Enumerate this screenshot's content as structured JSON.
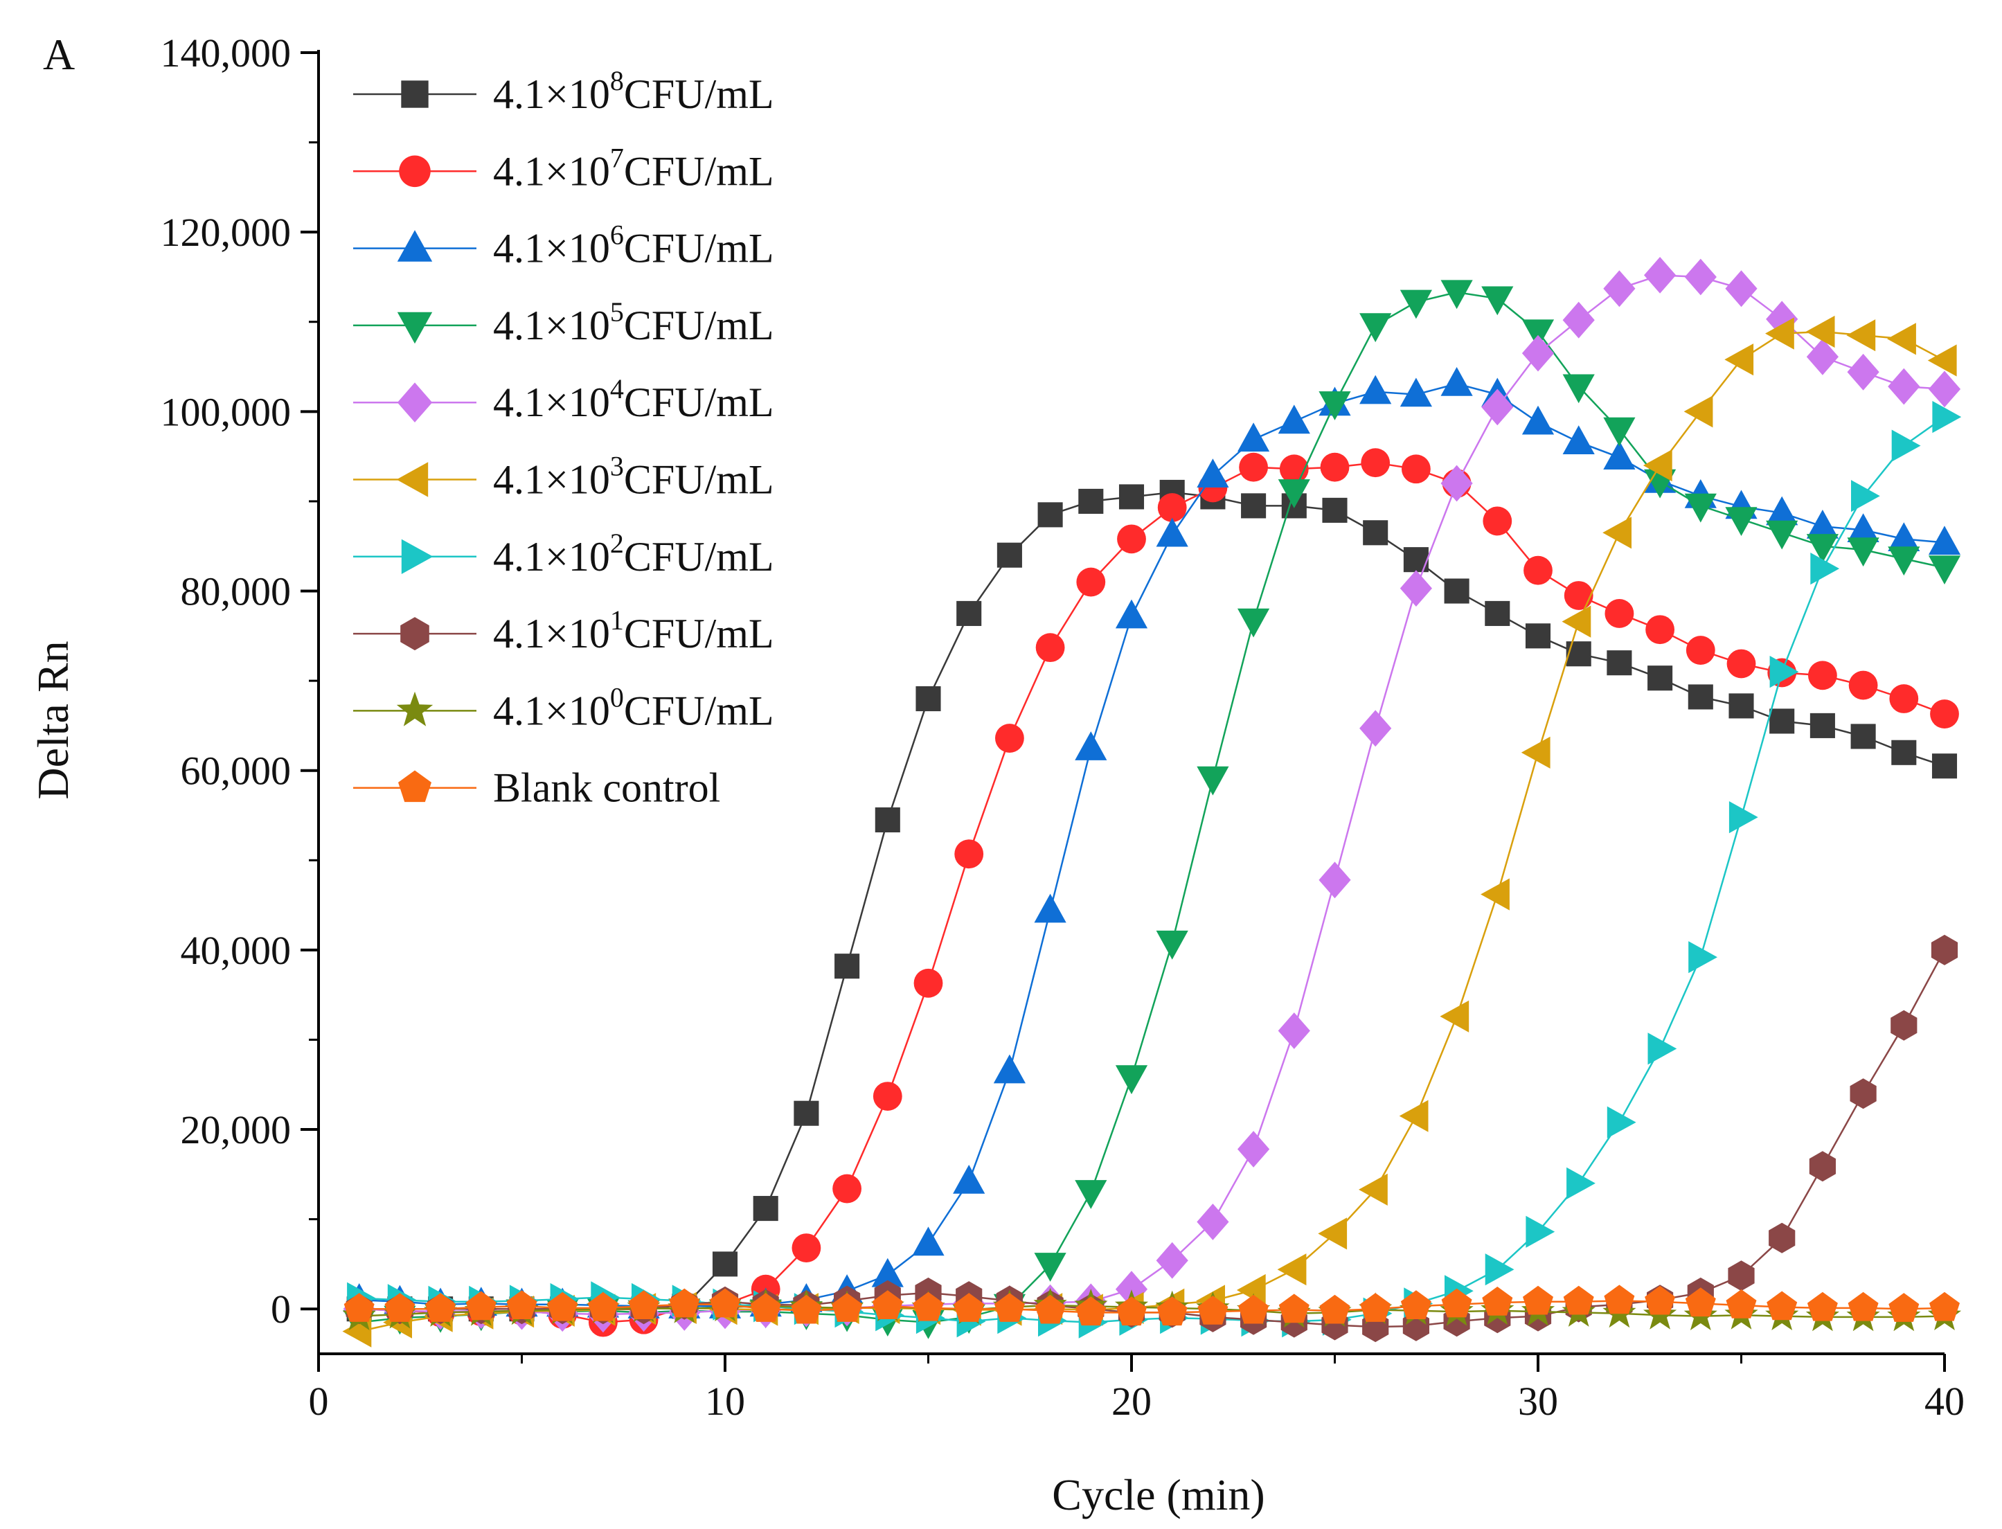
{
  "chart_data": {
    "type": "line",
    "panel_label": "A",
    "xlabel": "Cycle (min)",
    "ylabel": "Delta Rn",
    "xlim": [
      0,
      40
    ],
    "ylim": [
      -5000,
      140000
    ],
    "x_ticks": [
      0,
      10,
      20,
      30,
      40
    ],
    "y_ticks": [
      0,
      20000,
      40000,
      60000,
      80000,
      100000,
      120000,
      140000
    ],
    "y_tick_labels": [
      "0",
      "20,000",
      "40,000",
      "60,000",
      "80,000",
      "100,000",
      "120,000",
      "140,000"
    ],
    "grid": false,
    "legend_position": "top-left",
    "x": [
      1,
      2,
      3,
      4,
      5,
      6,
      7,
      8,
      9,
      10,
      11,
      12,
      13,
      14,
      15,
      16,
      17,
      18,
      19,
      20,
      21,
      22,
      23,
      24,
      25,
      26,
      27,
      28,
      29,
      30,
      31,
      32,
      33,
      34,
      35,
      36,
      37,
      38,
      39,
      40
    ],
    "series": [
      {
        "name": "4.1×10⁸CFU/mL",
        "legend_base": "4.1×10",
        "legend_sup": "8",
        "legend_unit": "CFU/mL",
        "color": "#3a3a3a",
        "marker": "square",
        "values": [
          0,
          0,
          0,
          0,
          0,
          0,
          0,
          0,
          300,
          5000,
          11200,
          21800,
          38200,
          54500,
          68000,
          77500,
          84000,
          88500,
          90000,
          90500,
          91000,
          90500,
          89500,
          89500,
          89000,
          86500,
          83500,
          80000,
          77500,
          75000,
          73000,
          72000,
          70300,
          68200,
          67200,
          65500,
          65000,
          63800,
          62000,
          60500
        ]
      },
      {
        "name": "4.1×10⁷CFU/mL",
        "legend_base": "4.1×10",
        "legend_sup": "7",
        "legend_unit": "CFU/mL",
        "color": "#ff2b2b",
        "marker": "circle",
        "values": [
          0,
          -200,
          -400,
          -300,
          -200,
          -600,
          -1500,
          -1200,
          200,
          500,
          2200,
          6800,
          13400,
          23700,
          36300,
          50700,
          63600,
          73700,
          81000,
          85800,
          89300,
          91500,
          93800,
          93600,
          93800,
          94300,
          93600,
          92000,
          87800,
          82300,
          79500,
          77500,
          75700,
          73400,
          71900,
          70900,
          70600,
          69500,
          68000,
          66300
        ]
      },
      {
        "name": "4.1×10⁶CFU/mL",
        "legend_base": "4.1×10",
        "legend_sup": "6",
        "legend_unit": "CFU/mL",
        "color": "#0f6fd6",
        "marker": "triangle-up",
        "values": [
          1000,
          800,
          500,
          600,
          500,
          500,
          400,
          300,
          300,
          300,
          500,
          1000,
          2000,
          3800,
          7300,
          14200,
          26500,
          44400,
          62500,
          77200,
          86300,
          92900,
          96900,
          98900,
          100900,
          102200,
          101900,
          103100,
          101900,
          98800,
          96600,
          94900,
          92300,
          90600,
          89400,
          88700,
          87200,
          86800,
          85800,
          85400
        ]
      },
      {
        "name": "4.1×10⁵CFU/mL",
        "legend_base": "4.1×10",
        "legend_sup": "5",
        "legend_unit": "CFU/mL",
        "color": "#12a35a",
        "marker": "triangle-down",
        "values": [
          -1500,
          -1000,
          -800,
          -600,
          -300,
          -300,
          -200,
          -400,
          -200,
          -300,
          -300,
          -500,
          -700,
          -1200,
          -1500,
          -900,
          300,
          4900,
          13000,
          25800,
          40800,
          59100,
          76700,
          91100,
          100900,
          109600,
          112200,
          113300,
          112600,
          108900,
          102800,
          98000,
          92200,
          89500,
          88000,
          86500,
          85000,
          84600,
          83600,
          82600
        ]
      },
      {
        "name": "4.1×10⁴CFU/mL",
        "legend_base": "4.1×10",
        "legend_sup": "4",
        "legend_unit": "CFU/mL",
        "color": "#cc77ee",
        "marker": "diamond",
        "values": [
          0,
          -200,
          -300,
          -200,
          -300,
          -500,
          -600,
          -500,
          -400,
          -200,
          -100,
          0,
          100,
          300,
          500,
          600,
          600,
          700,
          800,
          2200,
          5400,
          9700,
          17800,
          31000,
          47800,
          64700,
          80300,
          92000,
          100500,
          106500,
          110200,
          113700,
          115200,
          115000,
          113700,
          110300,
          106100,
          104400,
          102800,
          102500
        ]
      },
      {
        "name": "4.1×10³CFU/mL",
        "legend_base": "4.1×10",
        "legend_sup": "3",
        "legend_unit": "CFU/mL",
        "color": "#d9a00d",
        "marker": "triangle-left",
        "values": [
          -2500,
          -1500,
          -800,
          -500,
          -300,
          -200,
          -100,
          0,
          100,
          0,
          -100,
          0,
          100,
          100,
          0,
          -100,
          -100,
          0,
          -100,
          100,
          500,
          900,
          2100,
          4400,
          8400,
          13300,
          21500,
          32600,
          46200,
          62000,
          76600,
          86500,
          94000,
          100000,
          105800,
          108700,
          108900,
          108500,
          108100,
          105700
        ]
      },
      {
        "name": "4.1×10²CFU/mL",
        "legend_base": "4.1×10",
        "legend_sup": "2",
        "legend_unit": "CFU/mL",
        "color": "#1cc6c6",
        "marker": "triangle-right",
        "values": [
          1200,
          1000,
          800,
          800,
          900,
          1100,
          1300,
          1100,
          900,
          500,
          300,
          0,
          -300,
          -700,
          -1000,
          -1400,
          -1000,
          -1300,
          -1500,
          -1200,
          -1000,
          -1100,
          -1300,
          -1400,
          -1200,
          -500,
          600,
          2000,
          4400,
          8600,
          14000,
          20800,
          29000,
          39200,
          54800,
          71000,
          82500,
          90600,
          96200,
          99400
        ]
      },
      {
        "name": "4.1×10¹CFU/mL",
        "legend_base": "4.1×10",
        "legend_sup": "1",
        "legend_unit": "CFU/mL",
        "color": "#8b4747",
        "marker": "hexagon",
        "values": [
          0,
          0,
          0,
          0,
          0,
          0,
          0,
          0,
          500,
          800,
          500,
          400,
          900,
          1500,
          1800,
          1400,
          900,
          400,
          0,
          -400,
          -400,
          -900,
          -1200,
          -1500,
          -1800,
          -2000,
          -1900,
          -1400,
          -1000,
          -800,
          200,
          500,
          1000,
          1800,
          3700,
          7900,
          15900,
          24000,
          31600,
          40000
        ]
      },
      {
        "name": "4.1×10⁰CFU/mL",
        "legend_base": "4.1×10",
        "legend_sup": "0",
        "legend_unit": "CFU/mL",
        "color": "#7a8a10",
        "marker": "star",
        "values": [
          -800,
          -600,
          -400,
          -300,
          -200,
          -100,
          0,
          100,
          0,
          200,
          300,
          200,
          100,
          200,
          100,
          -100,
          200,
          400,
          300,
          200,
          100,
          0,
          -200,
          -500,
          -400,
          -100,
          -200,
          -300,
          -200,
          -300,
          -400,
          -500,
          -700,
          -800,
          -700,
          -800,
          -900,
          -900,
          -900,
          -800
        ]
      },
      {
        "name": "Blank control",
        "legend_base": "Blank control",
        "legend_sup": "",
        "legend_unit": "",
        "color": "#f96a12",
        "marker": "pentagon",
        "values": [
          0,
          0,
          0,
          200,
          300,
          100,
          100,
          300,
          500,
          500,
          0,
          -200,
          0,
          300,
          100,
          0,
          0,
          -200,
          -400,
          -400,
          -400,
          -300,
          -200,
          -100,
          -200,
          0,
          300,
          500,
          700,
          800,
          800,
          900,
          800,
          600,
          400,
          200,
          100,
          100,
          0,
          100
        ]
      }
    ]
  }
}
